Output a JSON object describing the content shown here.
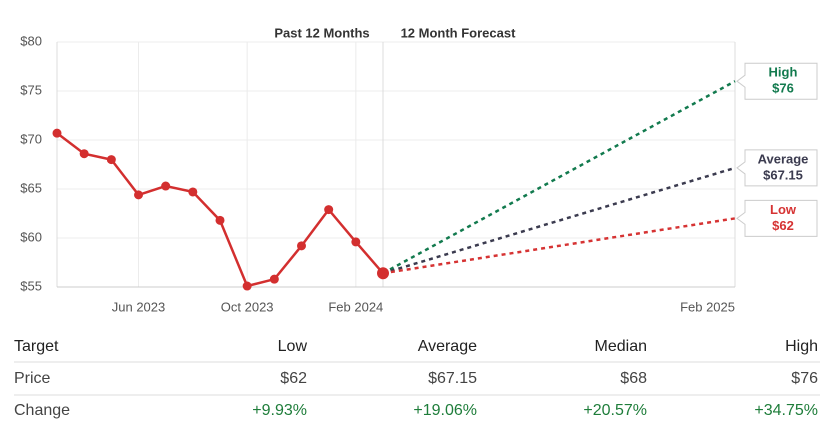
{
  "chart_data": {
    "type": "line",
    "panel_labels": [
      "Past 12 Months",
      "12 Month Forecast"
    ],
    "categories": [
      null,
      null,
      null,
      "Jun 2023",
      null,
      null,
      null,
      "Oct 2023",
      null,
      null,
      null,
      "Feb 2024",
      null
    ],
    "values": [
      70.7,
      68.6,
      68.0,
      64.4,
      65.3,
      64.7,
      61.8,
      55.1,
      55.8,
      59.2,
      62.9,
      59.6,
      56.4
    ],
    "color": "#d32f2f",
    "ylim": [
      55,
      80
    ],
    "yticks": [
      {
        "value": 55,
        "label": "$55"
      },
      {
        "value": 60,
        "label": "$60"
      },
      {
        "value": 65,
        "label": "$65"
      },
      {
        "value": 70,
        "label": "$70"
      },
      {
        "value": 75,
        "label": "$75"
      },
      {
        "value": 80,
        "label": "$80"
      }
    ],
    "grid": true,
    "forecast": {
      "category": "Feb 2025",
      "series": [
        {
          "name": "High",
          "color": "#127a4e",
          "value": 76,
          "value_label": "$76"
        },
        {
          "name": "Average",
          "color": "#3b3b4f",
          "value": 67.15,
          "value_label": "$67.15"
        },
        {
          "name": "Low",
          "color": "#d63333",
          "value": 62,
          "value_label": "$62"
        }
      ]
    }
  },
  "table": {
    "header": [
      "Target",
      "Low",
      "Average",
      "Median",
      "High"
    ],
    "rows": [
      [
        "Price",
        "$62",
        "$67.15",
        "$68",
        "$76"
      ],
      [
        "Change",
        "+9.93%",
        "+19.06%",
        "+20.57%",
        "+34.75%"
      ]
    ]
  }
}
